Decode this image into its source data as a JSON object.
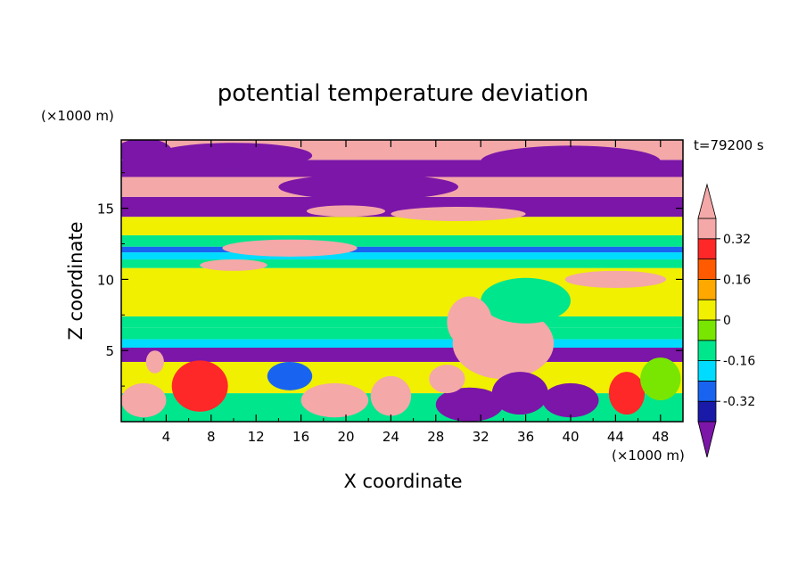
{
  "chart_data": {
    "type": "heatmap",
    "title": "potential temperature deviation",
    "xlabel": "X coordinate",
    "ylabel": "Z coordinate",
    "x_unit": "(×1000 m)",
    "y_unit": "(×1000 m)",
    "time_label": "t=79200 s",
    "xlim": [
      0,
      50
    ],
    "ylim": [
      0,
      19.8
    ],
    "x_ticks": [
      "4",
      "8",
      "12",
      "16",
      "20",
      "24",
      "28",
      "32",
      "36",
      "40",
      "44",
      "48"
    ],
    "y_ticks": [
      "5",
      "10",
      "15"
    ],
    "colorbar": {
      "levels": [
        -0.4,
        -0.32,
        -0.24,
        -0.16,
        -0.08,
        0,
        0.08,
        0.16,
        0.24,
        0.32,
        0.4
      ],
      "colors": [
        "#7b16a8",
        "#1a1aa8",
        "#1864f0",
        "#00dcff",
        "#00e68c",
        "#78e600",
        "#f0f000",
        "#ffa800",
        "#ff5a00",
        "#ff2828",
        "#f4a8a8"
      ],
      "tick_labels": [
        "0.32",
        "0.16",
        "0",
        "-0.16",
        "-0.32"
      ],
      "extend": "both"
    },
    "bands": [
      {
        "z0": 0.0,
        "z1": 2.0,
        "value": -0.12
      },
      {
        "z0": 2.0,
        "z1": 4.2,
        "value": 0.0
      },
      {
        "z0": 4.2,
        "z1": 5.2,
        "value": -0.4
      },
      {
        "z0": 5.2,
        "z1": 5.8,
        "value": -0.24
      },
      {
        "z0": 5.8,
        "z1": 6.6,
        "value": -0.16
      },
      {
        "z0": 6.6,
        "z1": 7.4,
        "value": -0.12
      },
      {
        "z0": 7.4,
        "z1": 10.8,
        "value": 0.0
      },
      {
        "z0": 10.8,
        "z1": 11.4,
        "value": -0.12
      },
      {
        "z0": 11.4,
        "z1": 11.9,
        "value": -0.24
      },
      {
        "z0": 11.9,
        "z1": 12.3,
        "value": -0.32
      },
      {
        "z0": 12.3,
        "z1": 13.1,
        "value": -0.16
      },
      {
        "z0": 13.1,
        "z1": 14.4,
        "value": 0.0
      },
      {
        "z0": 14.4,
        "z1": 15.8,
        "value": -0.4
      },
      {
        "z0": 15.8,
        "z1": 17.2,
        "value": 0.4
      },
      {
        "z0": 17.2,
        "z1": 18.4,
        "value": -0.4
      },
      {
        "z0": 18.4,
        "z1": 19.8,
        "value": 0.4
      }
    ],
    "blobs": [
      {
        "x": 34,
        "z": 5.5,
        "rx": 4.5,
        "rz": 2.5,
        "value": 0.4
      },
      {
        "x": 36,
        "z": 8.5,
        "rx": 4.0,
        "rz": 1.6,
        "value": -0.16
      },
      {
        "x": 31,
        "z": 7.0,
        "rx": 2.0,
        "rz": 1.8,
        "value": 0.4
      },
      {
        "x": 35.5,
        "z": 2.0,
        "rx": 2.5,
        "rz": 1.5,
        "value": -0.4
      },
      {
        "x": 31,
        "z": 1.2,
        "rx": 3.0,
        "rz": 1.2,
        "value": -0.4
      },
      {
        "x": 29,
        "z": 3.0,
        "rx": 1.6,
        "rz": 1.0,
        "value": 0.4
      },
      {
        "x": 15,
        "z": 12.2,
        "rx": 6.0,
        "rz": 0.6,
        "value": 0.4
      },
      {
        "x": 10,
        "z": 11.0,
        "rx": 3.0,
        "rz": 0.4,
        "value": 0.4
      },
      {
        "x": 44,
        "z": 10.0,
        "rx": 4.5,
        "rz": 0.6,
        "value": 0.4
      },
      {
        "x": 7,
        "z": 2.5,
        "rx": 2.5,
        "rz": 1.8,
        "value": 0.24
      },
      {
        "x": 2,
        "z": 1.5,
        "rx": 2.0,
        "rz": 1.2,
        "value": 0.32
      },
      {
        "x": 19,
        "z": 1.5,
        "rx": 3.0,
        "rz": 1.2,
        "value": 0.32
      },
      {
        "x": 24,
        "z": 1.8,
        "rx": 1.8,
        "rz": 1.4,
        "value": 0.4
      },
      {
        "x": 15,
        "z": 3.2,
        "rx": 2.0,
        "rz": 1.0,
        "value": -0.32
      },
      {
        "x": 40,
        "z": 1.5,
        "rx": 2.5,
        "rz": 1.2,
        "value": -0.4
      },
      {
        "x": 45,
        "z": 2.0,
        "rx": 1.6,
        "rz": 1.5,
        "value": 0.24
      },
      {
        "x": 48,
        "z": 3.0,
        "rx": 1.8,
        "rz": 1.5,
        "value": -0.08
      },
      {
        "x": 3,
        "z": 4.2,
        "rx": 0.8,
        "rz": 0.8,
        "value": 0.4
      },
      {
        "x": 10,
        "z": 18.7,
        "rx": 7.0,
        "rz": 0.9,
        "value": -0.4
      },
      {
        "x": 40,
        "z": 18.3,
        "rx": 8.0,
        "rz": 1.1,
        "value": -0.4
      },
      {
        "x": 22,
        "z": 16.5,
        "rx": 8.0,
        "rz": 0.9,
        "value": -0.4
      },
      {
        "x": 2,
        "z": 19.0,
        "rx": 2.5,
        "rz": 0.9,
        "value": -0.4
      },
      {
        "x": 30,
        "z": 14.6,
        "rx": 6.0,
        "rz": 0.5,
        "value": 0.4
      },
      {
        "x": 20,
        "z": 14.8,
        "rx": 3.5,
        "rz": 0.4,
        "value": 0.4
      }
    ]
  }
}
